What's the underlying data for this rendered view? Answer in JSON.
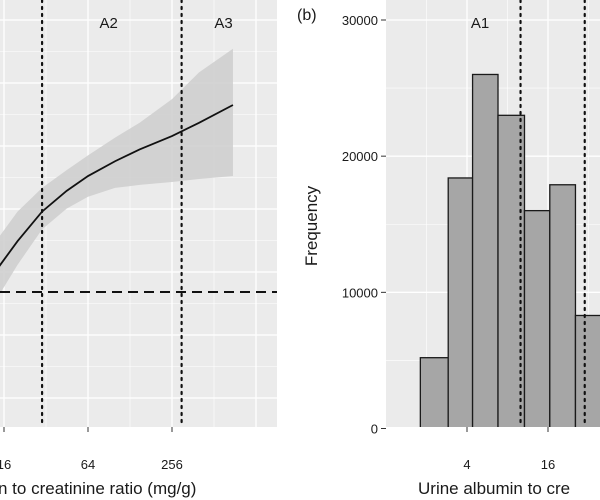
{
  "chart_data": [
    {
      "type": "line",
      "panel_label": "",
      "xlabel": "n to creatinine ratio (mg/g)",
      "ylabel": "",
      "x_scale": "log2",
      "xlim": [
        10,
        1024
      ],
      "x_ticks": [
        16,
        64,
        256
      ],
      "x_tick_labels": [
        "16",
        "64",
        "256"
      ],
      "grid": true,
      "background": "#ebebeb",
      "region_labels": [
        {
          "text": "A2",
          "x": 90
        },
        {
          "text": "A3",
          "x": 600
        }
      ],
      "vertical_reference_lines": [
        30,
        300
      ],
      "horizontal_reference_line": {
        "style": "dashed"
      },
      "series": [
        {
          "x": [
            10,
            14,
            20,
            30,
            45,
            64,
            100,
            150,
            256,
            400,
            700
          ],
          "y": [
            0.2,
            0.3,
            0.4,
            0.5,
            0.57,
            0.62,
            0.67,
            0.71,
            0.755,
            0.8,
            0.86
          ],
          "lower": [
            0.1,
            0.2,
            0.32,
            0.44,
            0.51,
            0.55,
            0.58,
            0.59,
            0.6,
            0.61,
            0.62
          ],
          "upper": [
            0.3,
            0.4,
            0.5,
            0.58,
            0.64,
            0.69,
            0.75,
            0.8,
            0.88,
            0.97,
            1.05
          ]
        }
      ],
      "colors": {
        "line": "#111111",
        "band": "#cfcfcf",
        "reference": "#111111"
      }
    },
    {
      "type": "bar",
      "panel_label": "(b)",
      "xlabel": "Urine albumin to cre",
      "ylabel": "Frequency",
      "x_scale": "log2",
      "x_ticks": [
        4,
        16
      ],
      "x_tick_labels": [
        "4",
        "16"
      ],
      "y_ticks": [
        0,
        10000,
        20000,
        30000
      ],
      "y_tick_labels": [
        "0",
        "10000",
        "20000",
        "30000"
      ],
      "ylim": [
        -1000,
        32000
      ],
      "grid": true,
      "background": "#ebebeb",
      "region_labels": [
        {
          "text": "A1",
          "x": 5.0
        }
      ],
      "vertical_reference_lines": [
        10,
        30
      ],
      "bins": [
        {
          "from": 1.8,
          "to": 2.9,
          "count": 5200
        },
        {
          "from": 2.9,
          "to": 4.4,
          "count": 18400
        },
        {
          "from": 4.4,
          "to": 6.8,
          "count": 26000
        },
        {
          "from": 6.8,
          "to": 10.7,
          "count": 23000
        },
        {
          "from": 10.7,
          "to": 16.5,
          "count": 16000
        },
        {
          "from": 16.5,
          "to": 25.6,
          "count": 17900
        },
        {
          "from": 25.6,
          "to": 39.4,
          "count": 8300
        }
      ],
      "colors": {
        "bar_fill": "#a6a6a6",
        "bar_stroke": "#1a1a1a",
        "reference": "#111111"
      }
    }
  ]
}
